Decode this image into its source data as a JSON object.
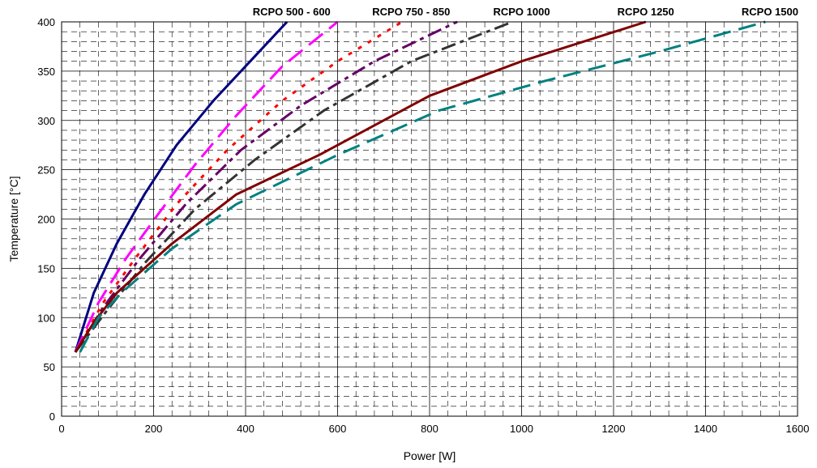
{
  "chart_data": {
    "type": "line",
    "xlabel": "Power [W]",
    "ylabel": "Temperature [°C]",
    "xlim": [
      0,
      1600
    ],
    "ylim": [
      0,
      400
    ],
    "xticks": [
      0,
      200,
      400,
      600,
      800,
      1000,
      1200,
      1400,
      1600
    ],
    "yticks": [
      0,
      50,
      100,
      150,
      200,
      250,
      300,
      350,
      400
    ],
    "grid": true,
    "grid_major_x_step": 200,
    "grid_major_y_step": 50,
    "grid_minor_x_step": 40,
    "grid_minor_y_step": 10,
    "series": [
      {
        "name": "RCPO 500 - 600",
        "color": "#00007F",
        "style": "solid",
        "x": [
          30,
          70,
          120,
          180,
          250,
          330,
          410,
          490
        ],
        "y": [
          65,
          125,
          175,
          225,
          275,
          320,
          360,
          400
        ]
      },
      {
        "name": "",
        "color": "#FF00FF",
        "style": "dashed",
        "x": [
          30,
          80,
          140,
          210,
          290,
          380,
          480,
          600
        ],
        "y": [
          65,
          115,
          160,
          205,
          255,
          305,
          355,
          400
        ]
      },
      {
        "name": "RCPO 750 - 850",
        "color": "#FF0000",
        "style": "dotted",
        "x": [
          30,
          90,
          160,
          250,
          360,
          480,
          600,
          740
        ],
        "y": [
          65,
          115,
          160,
          215,
          270,
          320,
          360,
          400
        ]
      },
      {
        "name": "",
        "color": "#660066",
        "style": "dashdot",
        "x": [
          30,
          90,
          170,
          270,
          390,
          520,
          680,
          860
        ],
        "y": [
          65,
          110,
          160,
          215,
          270,
          315,
          360,
          400
        ]
      },
      {
        "name": "RCPO 1000",
        "color": "#333333",
        "style": "dashdot",
        "x": [
          30,
          95,
          180,
          290,
          420,
          570,
          760,
          980
        ],
        "y": [
          65,
          105,
          155,
          210,
          260,
          310,
          360,
          400
        ]
      },
      {
        "name": "RCPO 1250",
        "color": "#800000",
        "style": "solid",
        "x": [
          30,
          70,
          120,
          240,
          380,
          560,
          800,
          1000,
          1270
        ],
        "y": [
          65,
          95,
          125,
          175,
          225,
          265,
          325,
          360,
          400
        ]
      },
      {
        "name": "RCPO 1500",
        "color": "#008080",
        "style": "dashed",
        "x": [
          40,
          80,
          130,
          240,
          380,
          600,
          820,
          1050,
          1300,
          1530
        ],
        "y": [
          65,
          100,
          125,
          170,
          215,
          265,
          310,
          340,
          370,
          400
        ]
      }
    ],
    "annotations": [
      {
        "text": "RCPO 500 - 600",
        "x": 500,
        "y": 400
      },
      {
        "text": "RCPO 750 - 850",
        "x": 760,
        "y": 400
      },
      {
        "text": "RCPO 1000",
        "x": 1000,
        "y": 400
      },
      {
        "text": "RCPO 1250",
        "x": 1270,
        "y": 400
      },
      {
        "text": "RCPO 1500",
        "x": 1540,
        "y": 400
      }
    ]
  }
}
